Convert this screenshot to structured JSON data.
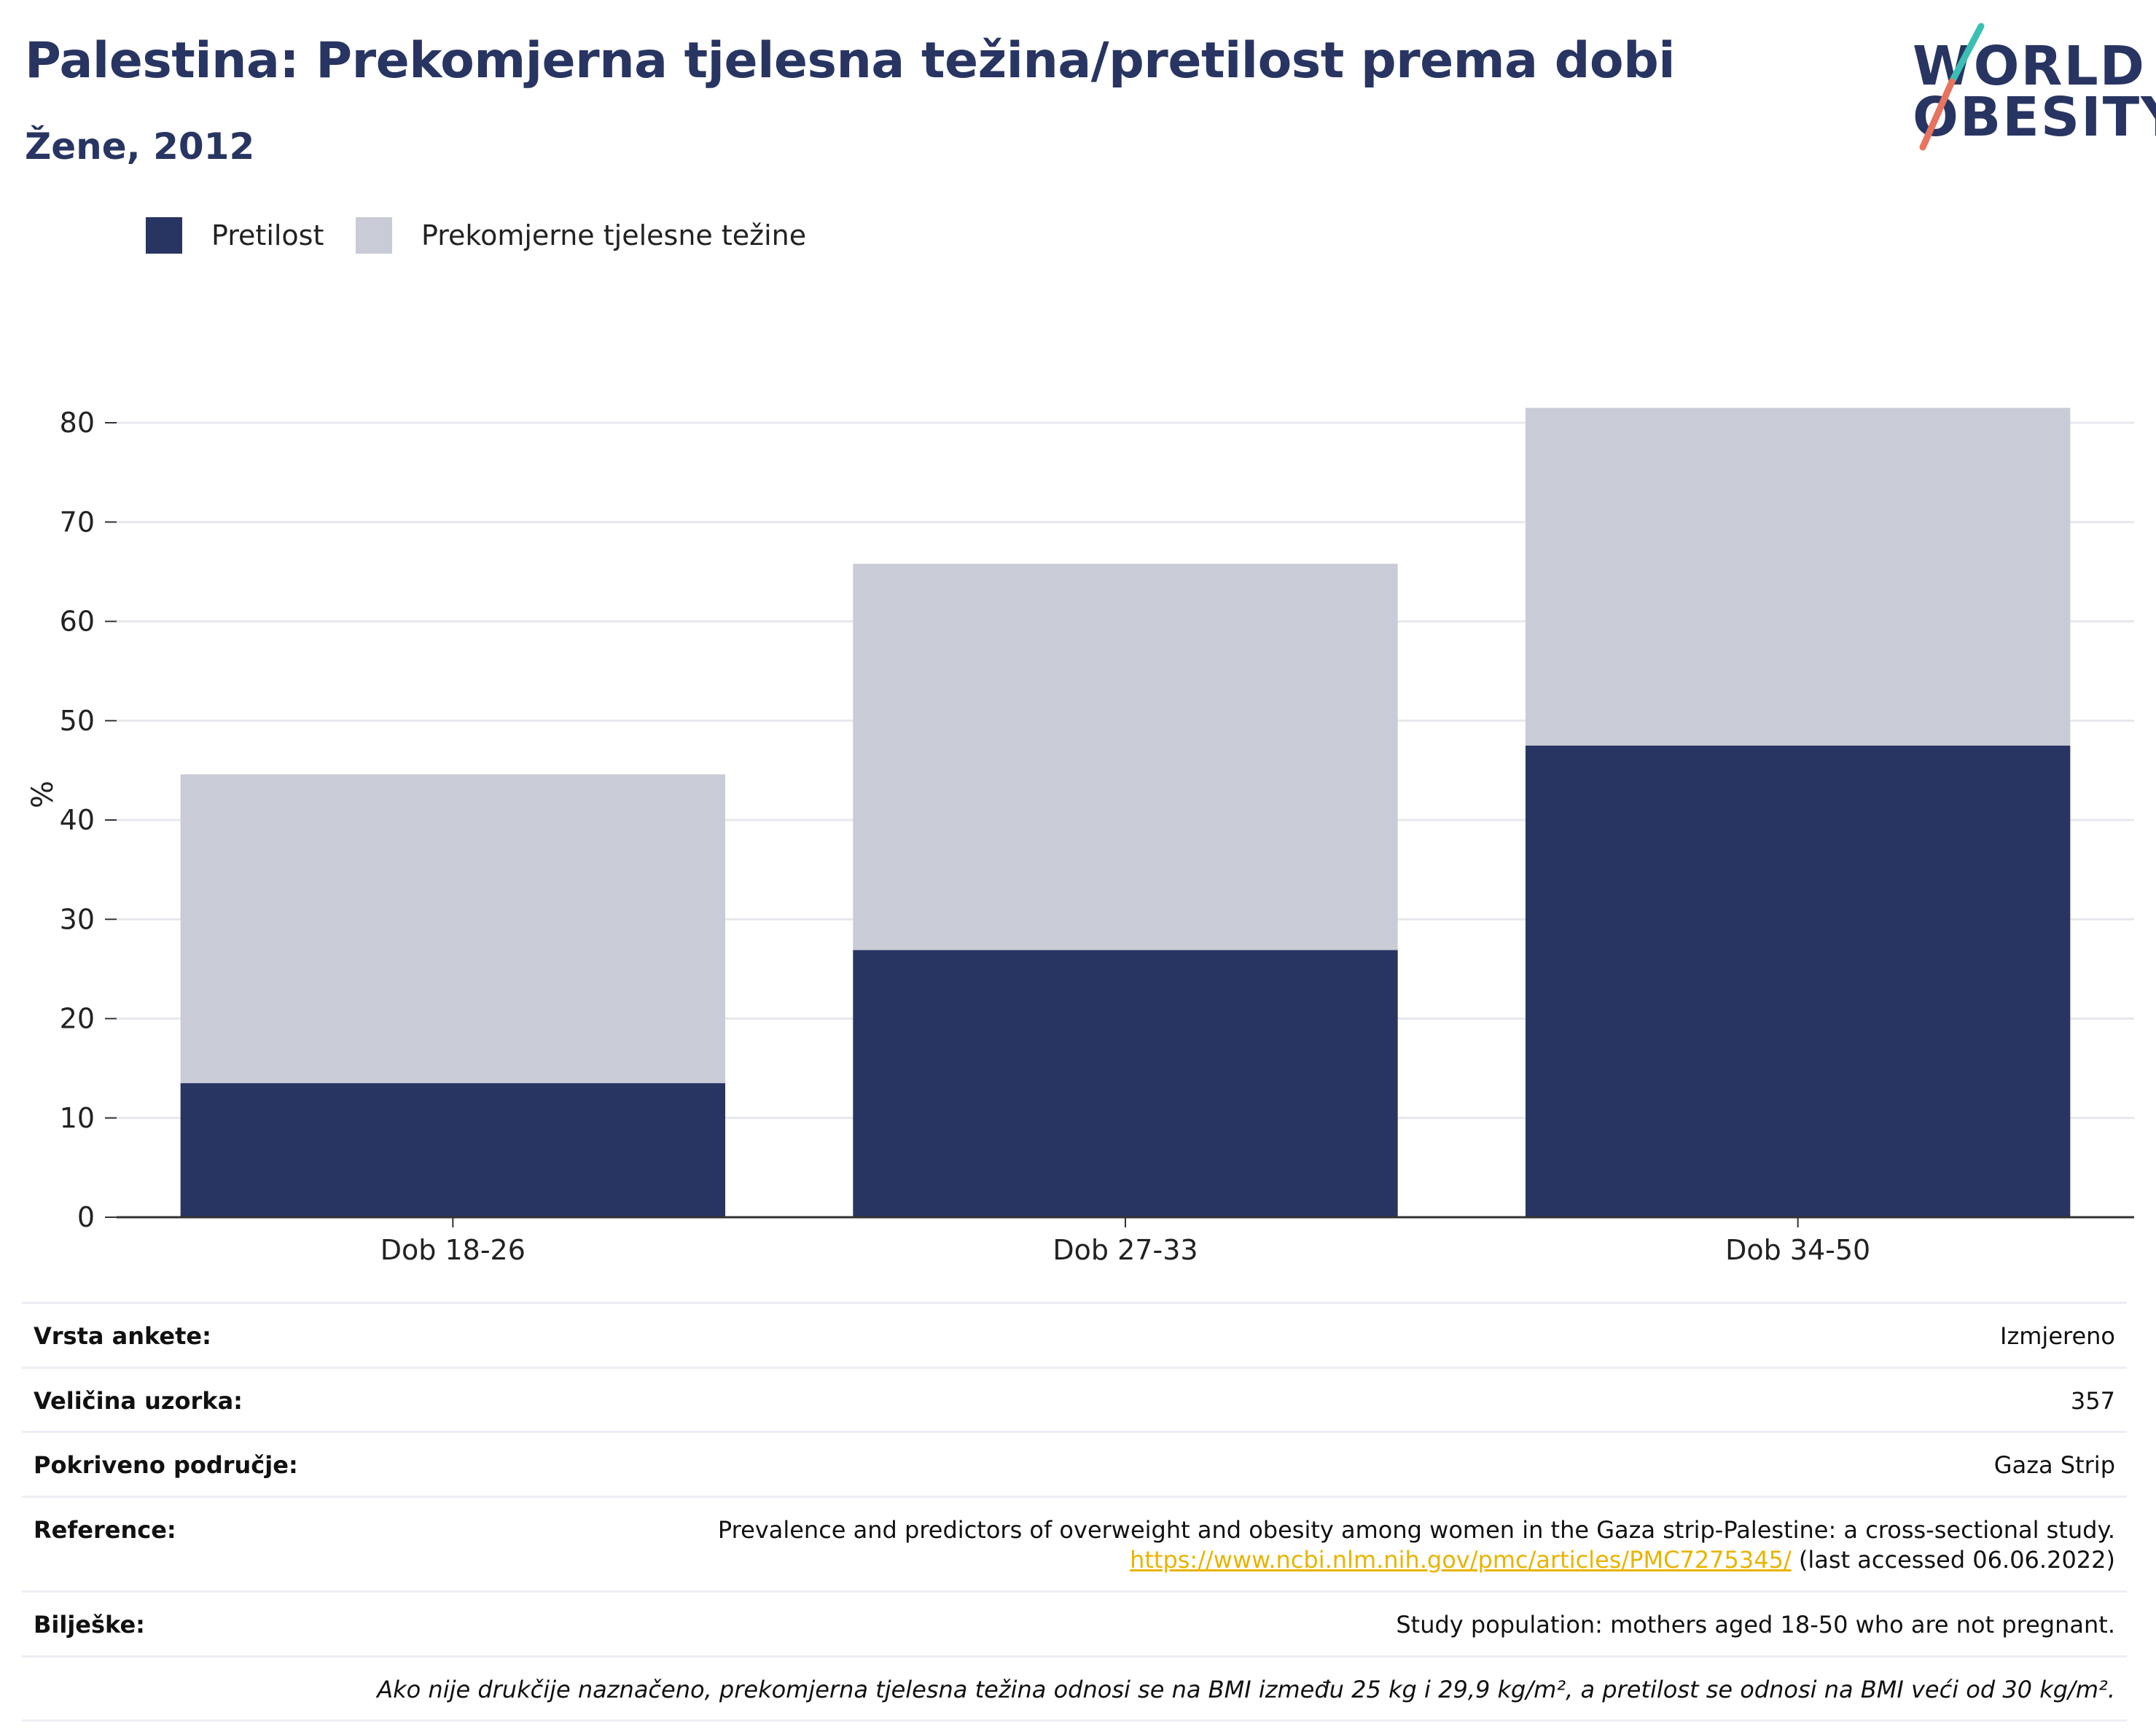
{
  "header": {
    "title": "Palestina: Prekomjerna tjelesna težina/pretilost prema dobi",
    "subtitle": "Žene, 2012"
  },
  "logo": {
    "line1": "WORLD",
    "line2": "OBESITY"
  },
  "legend": [
    {
      "label": "Pretilost",
      "color": "#283562"
    },
    {
      "label": "Prekomjerne tjelesne težine",
      "color": "#c9cbd6"
    }
  ],
  "chart_data": {
    "type": "bar",
    "stacked": true,
    "categories": [
      "Dob 18-26",
      "Dob 27-33",
      "Dob 34-50"
    ],
    "series": [
      {
        "name": "Pretilost",
        "values": [
          13.5,
          26.9,
          47.5
        ],
        "color": "#283562"
      },
      {
        "name": "Prekomjerne tjelesne težine",
        "values": [
          31.1,
          38.9,
          34.0
        ],
        "color": "#c9cbd6"
      }
    ],
    "ylabel": "%",
    "ylim": [
      0,
      80
    ],
    "yticks": [
      0,
      10,
      20,
      30,
      40,
      50,
      60,
      70,
      80
    ],
    "grid": true
  },
  "info": {
    "survey_type": {
      "label": "Vrsta ankete:",
      "value": "Izmjereno"
    },
    "sample_size": {
      "label": "Veličina uzorka:",
      "value": "357"
    },
    "coverage": {
      "label": "Pokriveno područje:",
      "value": "Gaza Strip"
    },
    "reference": {
      "label": "Reference:",
      "text": "Prevalence and predictors of overweight and obesity among women in the Gaza strip-Palestine: a cross-sectional study.",
      "url": "https://www.ncbi.nlm.nih.gov/pmc/articles/PMC7275345/",
      "accessed": "(last accessed 06.06.2022)"
    },
    "notes": {
      "label": "Bilješke:",
      "value": "Study population: mothers aged 18-50 who are not pregnant."
    },
    "definition": "Ako nije drukčije naznačeno, prekomjerna tjelesna težina odnosi se na BMI između 25 kg i 29,9 kg/m², a pretilost se odnosi na BMI veći od 30 kg/m²."
  }
}
